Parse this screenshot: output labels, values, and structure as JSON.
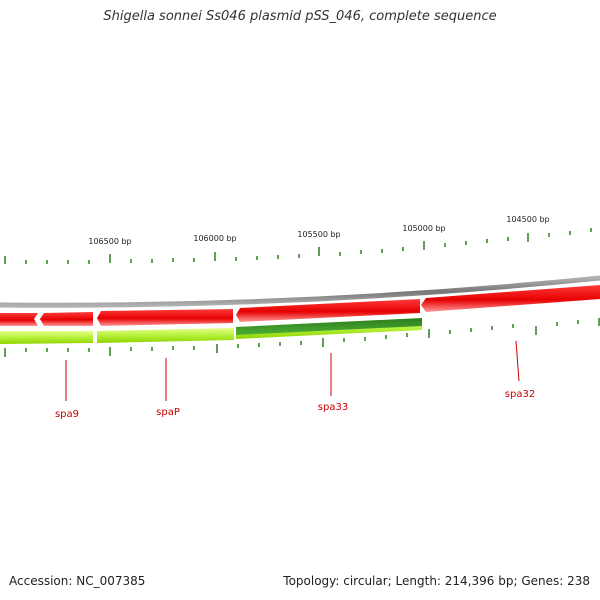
{
  "title": "Shigella sonnei Ss046 plasmid pSS_046, complete sequence",
  "footer": {
    "accession": "Accession: NC_007385",
    "stats": "Topology: circular; Length: 214,396 bp; Genes: 238"
  },
  "scale_labels": [
    "106500 bp",
    "106000 bp",
    "105500 bp",
    "105000 bp",
    "104500 bp"
  ],
  "genes": [
    {
      "name": "spa9",
      "strand": "forward",
      "color": "#e60000"
    },
    {
      "name": "spaP",
      "strand": "forward",
      "color": "#e60000"
    },
    {
      "name": "spa33",
      "strand": "reverse",
      "color": "#2e7d1e"
    },
    {
      "name": "spa32",
      "strand": "forward",
      "color": "#e60000"
    }
  ],
  "colors": {
    "backbone": "#8a8a8a",
    "forward_cds": "#e60000",
    "reverse_cds": "#2e7d1e",
    "reverse_track": "#a6e600",
    "ticks": "#2e7d1e",
    "label": "#cc0000"
  }
}
